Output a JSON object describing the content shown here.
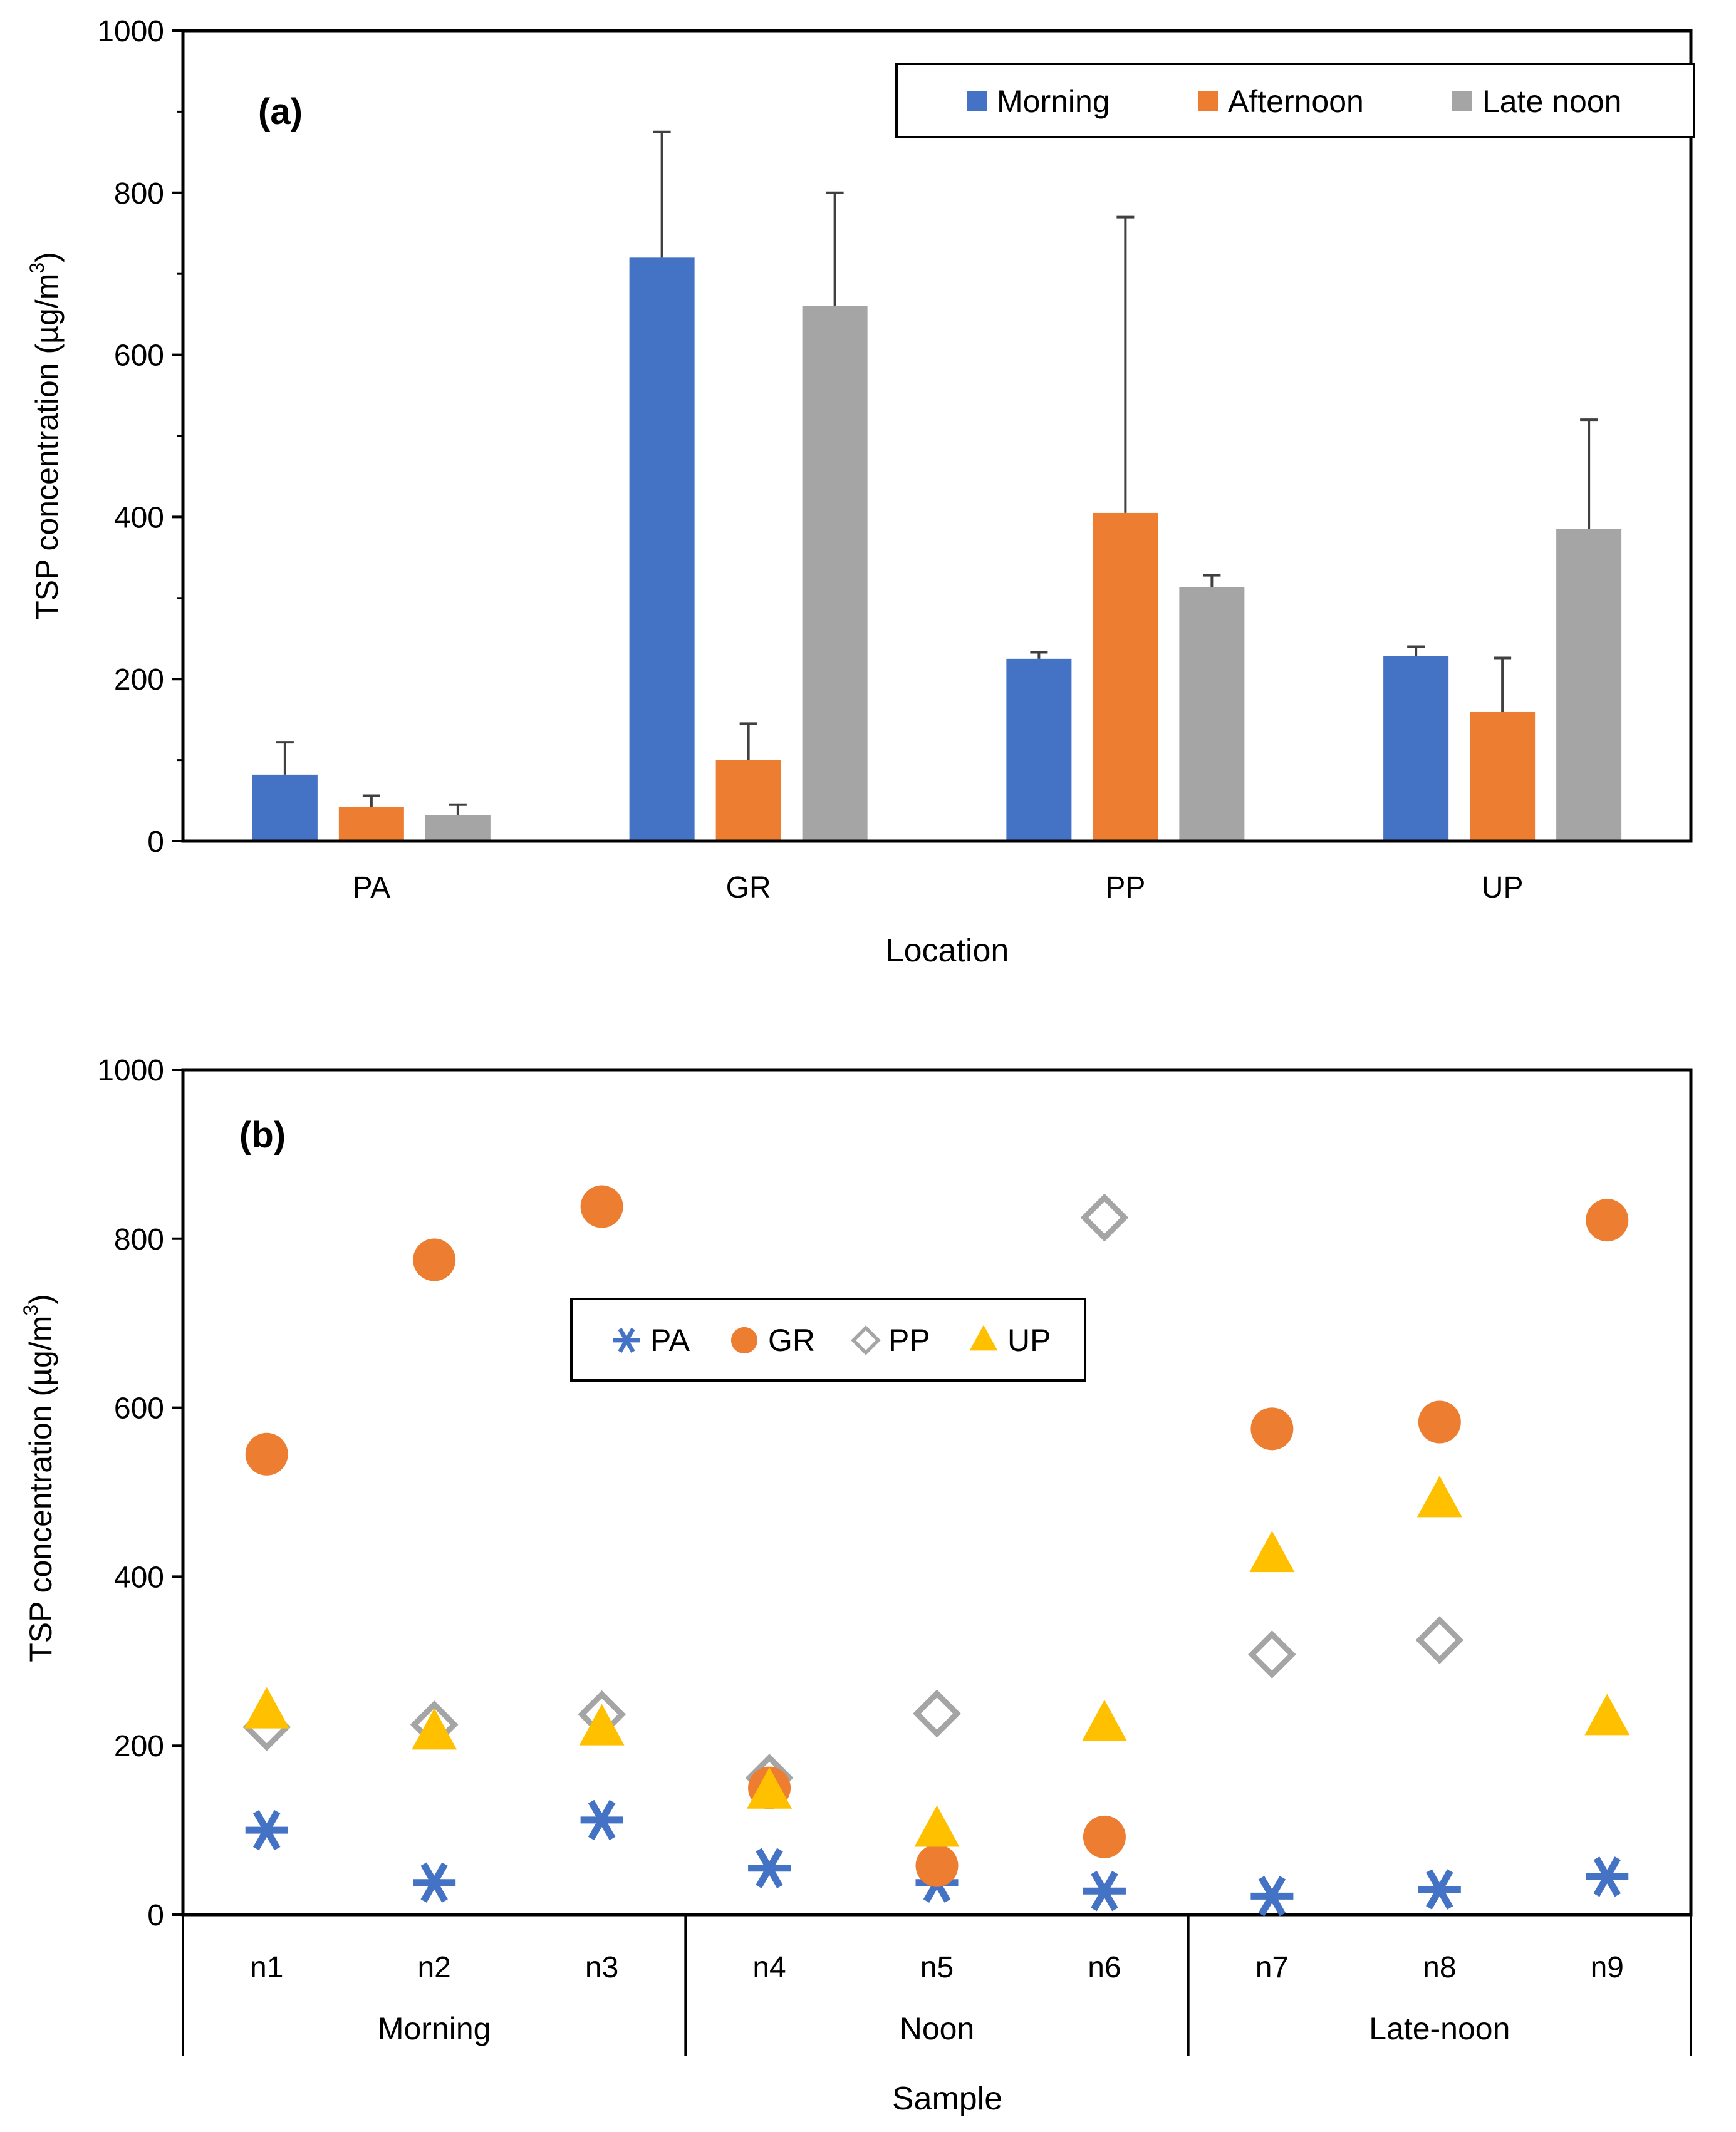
{
  "chart_data": [
    {
      "type": "bar",
      "panel_label": "(a)",
      "ylabel_main": "TSP concentration (µg/m",
      "ylabel_sup": "3",
      "ylabel_close": ")",
      "xlabel": "Location",
      "ylim": [
        0,
        1000
      ],
      "yticks": [
        "0",
        "200",
        "400",
        "600",
        "800",
        "1000"
      ],
      "ytick_values": [
        0,
        200,
        400,
        600,
        800,
        1000
      ],
      "categories": [
        "PA",
        "GR",
        "PP",
        "UP"
      ],
      "legend_position": "top-right",
      "series": [
        {
          "name": "Morning",
          "color": "#4472C4",
          "values": [
            82,
            720,
            225,
            228
          ],
          "error_upper": [
            122,
            875,
            233,
            240
          ]
        },
        {
          "name": "Afternoon",
          "color": "#ED7D31",
          "values": [
            42,
            100,
            405,
            160
          ],
          "error_upper": [
            56,
            145,
            770,
            226
          ]
        },
        {
          "name": "Late noon",
          "color": "#A5A5A5",
          "values": [
            32,
            660,
            313,
            385
          ],
          "error_upper": [
            45,
            800,
            328,
            520
          ]
        }
      ]
    },
    {
      "type": "scatter",
      "panel_label": "(b)",
      "ylabel_main": "TSP concentration (µg/m",
      "ylabel_sup": "3",
      "ylabel_close": ")",
      "xlabel": "Sample",
      "ylim": [
        0,
        1000
      ],
      "yticks": [
        "0",
        "200",
        "400",
        "600",
        "800",
        "1000"
      ],
      "ytick_values": [
        0,
        200,
        400,
        600,
        800,
        1000
      ],
      "categories": [
        "n1",
        "n2",
        "n3",
        "n4",
        "n5",
        "n6",
        "n7",
        "n8",
        "n9"
      ],
      "groups": [
        {
          "label": "Morning",
          "span": 3
        },
        {
          "label": "Noon",
          "span": 3
        },
        {
          "label": "Late-noon",
          "span": 3
        }
      ],
      "legend_position": "center-left",
      "series": [
        {
          "name": "PA",
          "marker": "asterisk",
          "color": "#4472C4",
          "values": [
            100,
            38,
            112,
            55,
            38,
            28,
            22,
            30,
            45
          ]
        },
        {
          "name": "GR",
          "marker": "circle",
          "color": "#ED7D31",
          "values": [
            545,
            775,
            838,
            150,
            58,
            92,
            575,
            583,
            822
          ]
        },
        {
          "name": "PP",
          "marker": "diamond",
          "color": "#A5A5A5",
          "values": [
            222,
            225,
            237,
            162,
            null,
            825,
            308,
            325,
            null
          ]
        },
        {
          "name": "UP",
          "marker": "triangle",
          "color": "#FFC000",
          "values": [
            240,
            215,
            220,
            145,
            100,
            225,
            425,
            490,
            232
          ]
        }
      ],
      "extra_points": [
        {
          "series": "PP",
          "category": "n5",
          "value": 238
        }
      ]
    }
  ]
}
